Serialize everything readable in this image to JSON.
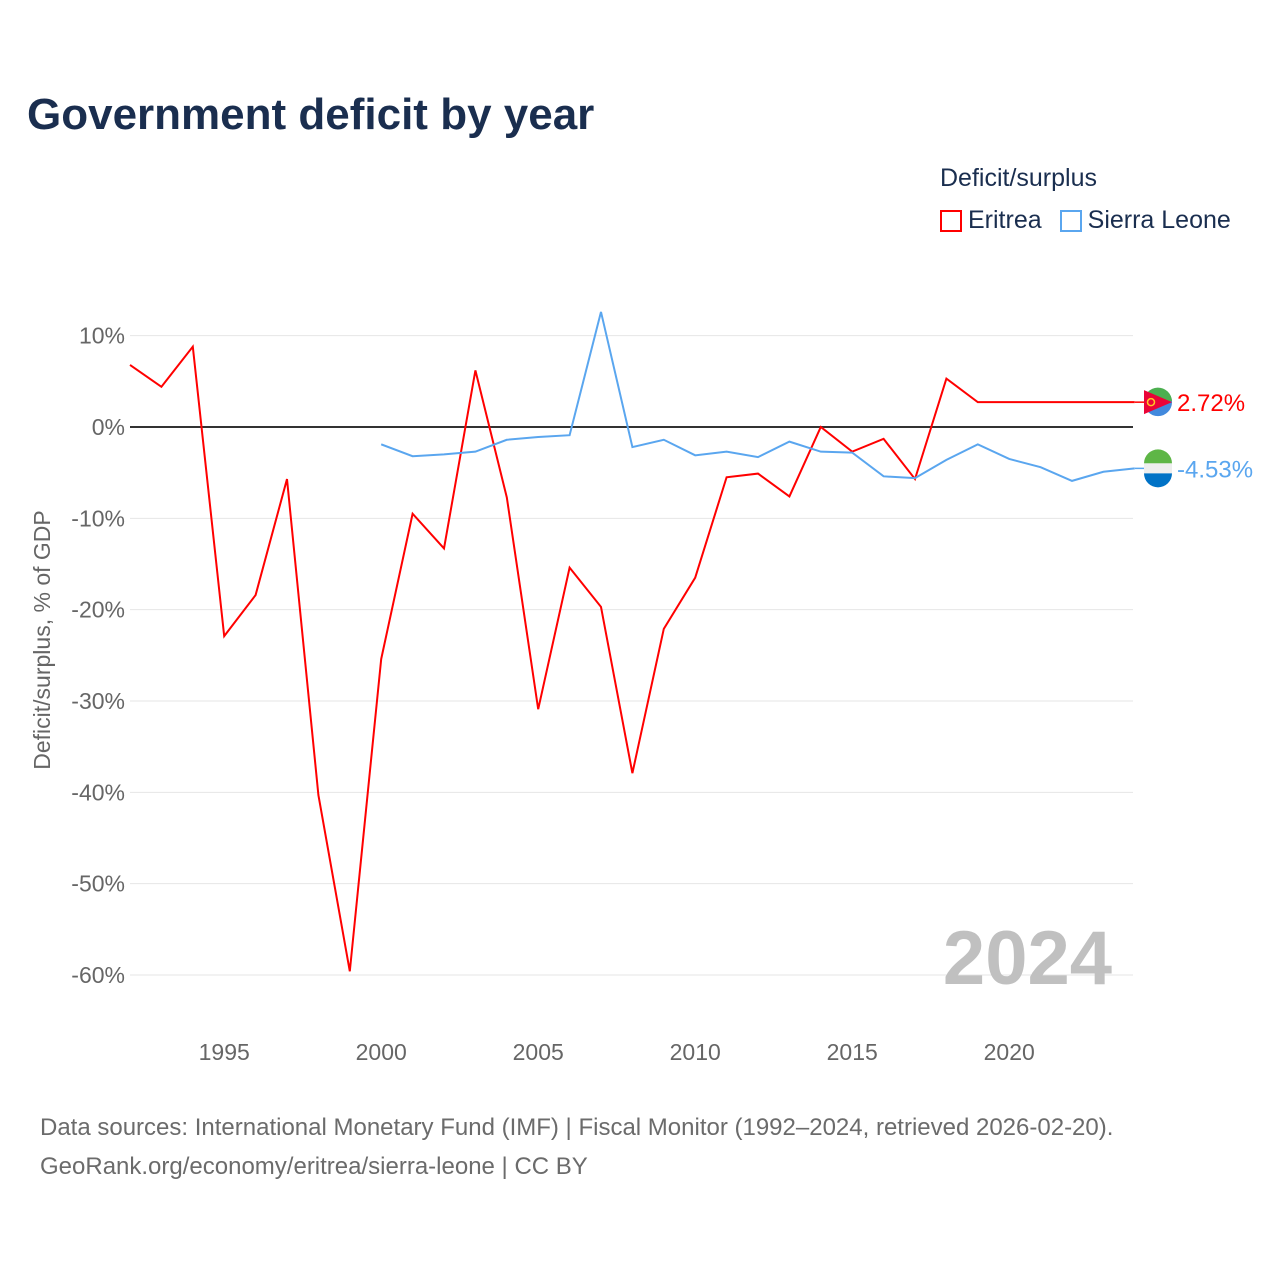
{
  "title": "Government deficit by year",
  "legend": {
    "title": "Deficit/surplus",
    "items": [
      {
        "label": "Eritrea",
        "color": "#ff0000"
      },
      {
        "label": "Sierra Leone",
        "color": "#5aa6ef"
      }
    ]
  },
  "footer": {
    "line1": "Data sources: International Monetary Fund (IMF) | Fiscal Monitor (1992–2024, retrieved 2026-02-20).",
    "line2": "GeoRank.org/economy/eritrea/sierra-leone | CC BY"
  },
  "chart_data": {
    "type": "line",
    "title": "Government deficit by year",
    "xlabel": "",
    "ylabel": "Deficit/surplus, % of GDP",
    "xlim": [
      1992,
      2024
    ],
    "ylim": [
      -60,
      10
    ],
    "yticks": [
      10,
      0,
      -10,
      -20,
      -30,
      -40,
      -50,
      -60
    ],
    "ytick_labels": [
      "10%",
      "0%",
      "-10%",
      "-20%",
      "-30%",
      "-40%",
      "-50%",
      "-60%"
    ],
    "xticks": [
      1995,
      2000,
      2005,
      2010,
      2015,
      2020
    ],
    "xtick_labels": [
      "1995",
      "2000",
      "2005",
      "2010",
      "2015",
      "2020"
    ],
    "watermark_year": "2024",
    "series": [
      {
        "name": "Eritrea",
        "color": "#ff0000",
        "end_label": "2.72%",
        "x": [
          1992,
          1993,
          1994,
          1995,
          1996,
          1997,
          1998,
          1999,
          2000,
          2001,
          2002,
          2003,
          2004,
          2005,
          2006,
          2007,
          2008,
          2009,
          2010,
          2011,
          2012,
          2013,
          2014,
          2015,
          2016,
          2017,
          2018,
          2019,
          2020,
          2021,
          2022,
          2023,
          2024
        ],
        "values": [
          6.8,
          4.4,
          8.8,
          -22.9,
          -18.4,
          -5.7,
          -40.3,
          -59.6,
          -25.4,
          -9.5,
          -13.3,
          6.2,
          -7.7,
          -30.9,
          -15.4,
          -19.7,
          -37.9,
          -22.1,
          -16.5,
          -5.5,
          -5.1,
          -7.6,
          0,
          -2.7,
          -1.3,
          -5.7,
          5.3,
          2.72,
          2.72,
          2.72,
          2.72,
          2.72,
          2.72
        ]
      },
      {
        "name": "Sierra Leone",
        "color": "#5aa6ef",
        "end_label": "-4.53%",
        "x": [
          2000,
          2001,
          2002,
          2003,
          2004,
          2005,
          2006,
          2007,
          2008,
          2009,
          2010,
          2011,
          2012,
          2013,
          2014,
          2015,
          2016,
          2017,
          2018,
          2019,
          2020,
          2021,
          2022,
          2023,
          2024
        ],
        "values": [
          -1.9,
          -3.2,
          -3.0,
          -2.7,
          -1.4,
          -1.1,
          -0.9,
          12.6,
          -2.2,
          -1.4,
          -3.1,
          -2.7,
          -3.3,
          -1.6,
          -2.7,
          -2.8,
          -5.4,
          -5.6,
          -3.6,
          -1.9,
          -3.5,
          -4.4,
          -5.9,
          -4.9,
          -4.53
        ]
      }
    ]
  }
}
